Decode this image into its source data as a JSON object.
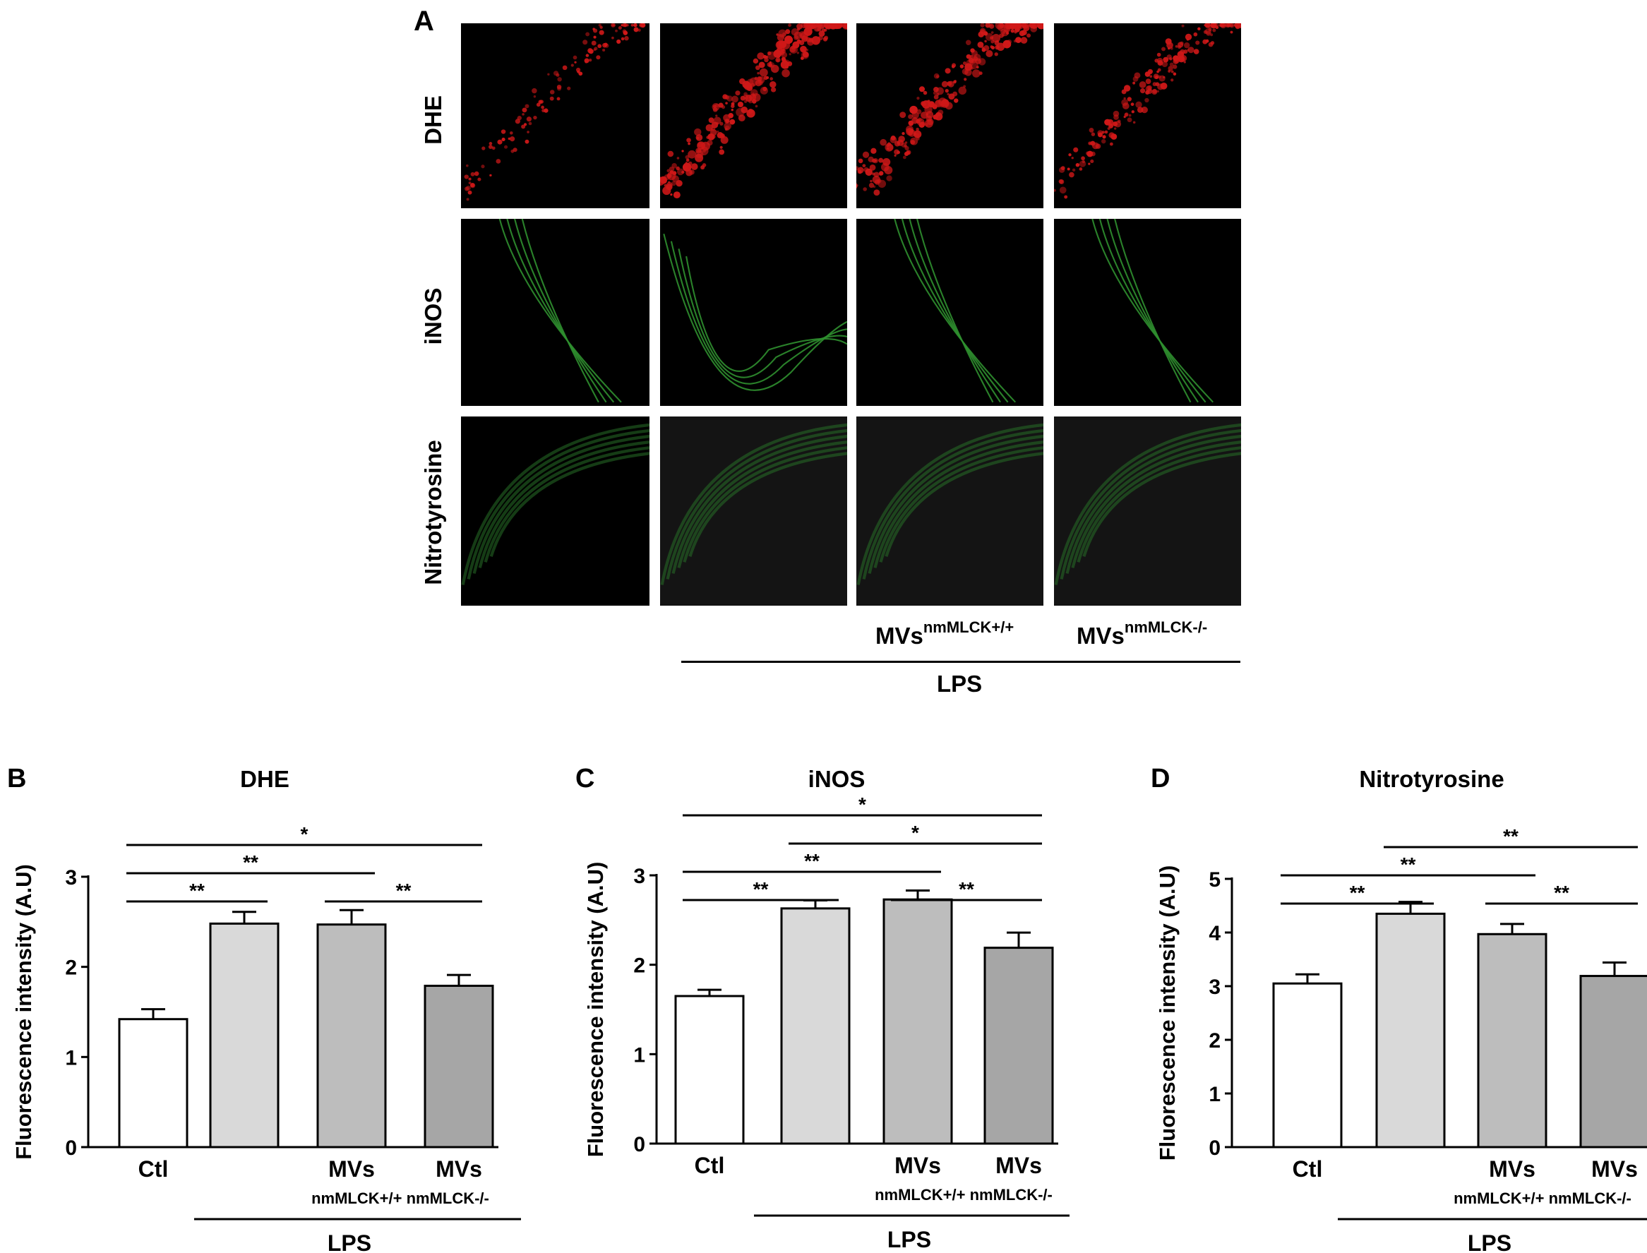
{
  "panel_a": {
    "letter": "A",
    "rows": [
      "DHE",
      "iNOS",
      "Nitrotyrosine"
    ],
    "group_labels": [
      {
        "main": "MVs",
        "sup": "nmMLCK+/+"
      },
      {
        "main": "MVs",
        "sup": "nmMLCK-/-"
      }
    ],
    "lps_label": "LPS",
    "colors": {
      "dhe": "#d01818",
      "inos": "#2f8f2f",
      "nitro": "#276e27"
    }
  },
  "chart_data": [
    {
      "type": "bar",
      "letter": "B",
      "title": "DHE",
      "ylabel": "Fluorescence intensity (A.U)",
      "ylim": [
        0,
        3
      ],
      "yticks": [
        0,
        1,
        2,
        3
      ],
      "categories": [
        "Ctl",
        "",
        "MVs",
        "MVs"
      ],
      "sub_labels": "nmMLCK+/+ nmMLCK-/-",
      "lps_label": "LPS",
      "values": [
        1.42,
        2.48,
        2.47,
        1.79
      ],
      "errors": [
        0.11,
        0.13,
        0.16,
        0.12
      ],
      "bar_colors": [
        "#ffffff",
        "#d9d9d9",
        "#bdbdbd",
        "#a6a6a6"
      ],
      "significance": [
        {
          "from": 0,
          "to": 1,
          "label": "**"
        },
        {
          "from": 0,
          "to": 2,
          "label": "**"
        },
        {
          "from": 0,
          "to": 3,
          "label": "*"
        },
        {
          "from": 2,
          "to": 3,
          "label": "**"
        }
      ]
    },
    {
      "type": "bar",
      "letter": "C",
      "title": "iNOS",
      "ylabel": "Fluorescence intensity (A.U)",
      "ylim": [
        0,
        3
      ],
      "yticks": [
        0,
        1,
        2,
        3
      ],
      "categories": [
        "Ctl",
        "",
        "MVs",
        "MVs"
      ],
      "sub_labels": "nmMLCK+/+ nmMLCK-/-",
      "lps_label": "LPS",
      "values": [
        1.65,
        2.63,
        2.73,
        2.19
      ],
      "errors": [
        0.07,
        0.09,
        0.1,
        0.17
      ],
      "bar_colors": [
        "#ffffff",
        "#d9d9d9",
        "#bdbdbd",
        "#a6a6a6"
      ],
      "significance": [
        {
          "from": 0,
          "to": 1,
          "label": "**"
        },
        {
          "from": 0,
          "to": 2,
          "label": "**"
        },
        {
          "from": 0,
          "to": 3,
          "label": "*"
        },
        {
          "from": 1,
          "to": 3,
          "label": "*"
        },
        {
          "from": 2,
          "to": 3,
          "label": "**"
        }
      ]
    },
    {
      "type": "bar",
      "letter": "D",
      "title": "Nitrotyrosine",
      "ylabel": "Fluorescence intensity (A.U)",
      "ylim": [
        0,
        5
      ],
      "yticks": [
        0,
        1,
        2,
        3,
        4,
        5
      ],
      "categories": [
        "Ctl",
        "",
        "MVs",
        "MVs"
      ],
      "sub_labels": "nmMLCK+/+ nmMLCK-/-",
      "lps_label": "LPS",
      "values": [
        3.05,
        4.35,
        3.97,
        3.19
      ],
      "errors": [
        0.17,
        0.22,
        0.19,
        0.25
      ],
      "bar_colors": [
        "#ffffff",
        "#d9d9d9",
        "#bdbdbd",
        "#a6a6a6"
      ],
      "significance": [
        {
          "from": 0,
          "to": 1,
          "label": "**"
        },
        {
          "from": 0,
          "to": 2,
          "label": "**"
        },
        {
          "from": 1,
          "to": 3,
          "label": "**"
        },
        {
          "from": 2,
          "to": 3,
          "label": "**"
        }
      ]
    }
  ]
}
